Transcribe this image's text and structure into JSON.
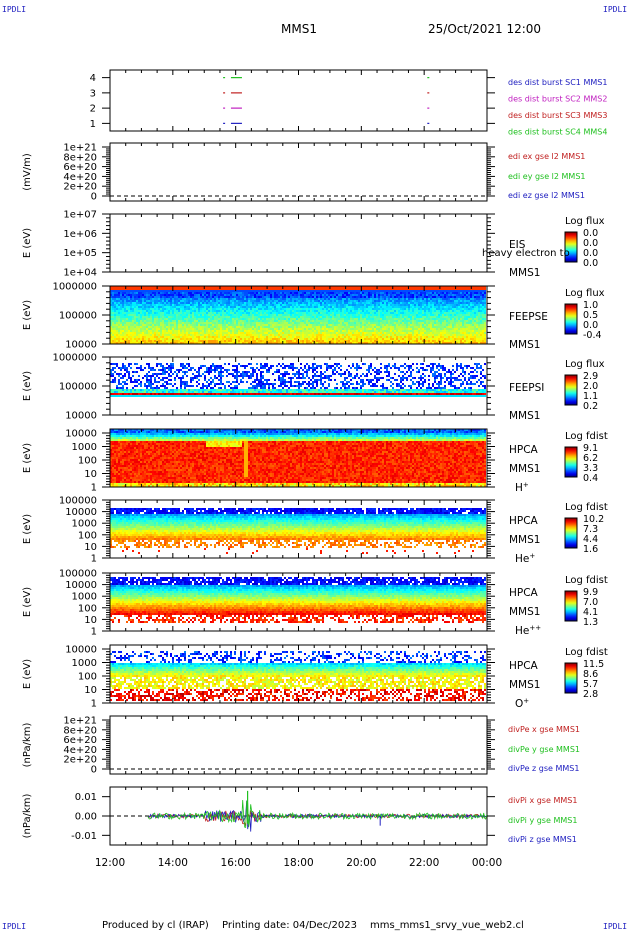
{
  "header": {
    "corner_label": "IPDLI",
    "spacecraft": "MMS1",
    "datetime": "25/Oct/2021 12:00"
  },
  "footer": {
    "produced_by": "Produced by cl (IRAP)",
    "printing_date": "Printing date: 04/Dec/2023",
    "file": "mms_mms1_srvy_vue_web2.cl"
  },
  "x_axis": {
    "ticks": [
      "12:00",
      "14:00",
      "16:00",
      "18:00",
      "20:00",
      "22:00",
      "00:00"
    ],
    "hours": [
      12,
      14,
      16,
      18,
      20,
      22,
      24
    ],
    "range": [
      12,
      24
    ]
  },
  "chart_data": [
    {
      "id": "burst",
      "type": "scatter",
      "ylim": [
        0.5,
        4.5
      ],
      "yticks": [
        "4",
        "3",
        "2",
        "1"
      ],
      "yvals": [
        4,
        3,
        2,
        1
      ],
      "legend": [
        {
          "label": "des dist burst SC1 MMS1",
          "color": "#2020c0"
        },
        {
          "label": "des dist burst SC2 MMS2",
          "color": "#c020c0"
        },
        {
          "label": "des dist burst SC3 MMS3",
          "color": "#c02020"
        },
        {
          "label": "des dist burst SC4 MMS4",
          "color": "#20c020"
        }
      ],
      "series": [
        {
          "level": 4,
          "color": "#20c020",
          "segments": [
            [
              15.6,
              15.65
            ],
            [
              15.85,
              16.2
            ],
            [
              22.1,
              22.12
            ]
          ]
        },
        {
          "level": 3,
          "color": "#c02020",
          "segments": [
            [
              15.6,
              15.65
            ],
            [
              15.85,
              16.2
            ],
            [
              22.1,
              22.12
            ]
          ]
        },
        {
          "level": 2,
          "color": "#c020c0",
          "segments": [
            [
              15.6,
              15.65
            ],
            [
              15.85,
              16.2
            ],
            [
              22.1,
              22.12
            ]
          ]
        },
        {
          "level": 1,
          "color": "#2020c0",
          "segments": [
            [
              15.6,
              15.65
            ],
            [
              15.85,
              16.2
            ],
            [
              22.1,
              22.12
            ]
          ]
        }
      ]
    },
    {
      "id": "edi",
      "type": "line",
      "ylabel": "(mV/m)",
      "yticks": [
        "1e+21",
        "8e+20",
        "6e+20",
        "4e+20",
        "2e+20",
        "0"
      ],
      "ylim": [
        0,
        1e+21
      ],
      "legend": [
        {
          "label": "edi ex gse l2 MMS1",
          "color": "#c02020"
        },
        {
          "label": "edi ey gse l2 MMS1",
          "color": "#20c020"
        },
        {
          "label": "edi ez gse l2 MMS1",
          "color": "#2020c0"
        }
      ]
    },
    {
      "id": "eis",
      "type": "heatmap",
      "ylabel": "E (eV)",
      "yticks": [
        "1e+07",
        "1e+06",
        "1e+05",
        "1e+04"
      ],
      "name": "EIS",
      "sc": "MMS1",
      "overlay": "heavy electron to",
      "cbar_title": "Log flux",
      "cbar_ticks": [
        "0.0",
        "0.0",
        "0.0",
        "0.0"
      ]
    },
    {
      "id": "feepse",
      "type": "heatmap",
      "ylabel": "E (eV)",
      "yticks": [
        "1000000",
        "100000",
        "10000"
      ],
      "name": "FEEPSE",
      "sc": "MMS1",
      "cbar_title": "Log flux",
      "cbar_ticks": [
        "1.0",
        "0.5",
        "0.0",
        "-0.4"
      ]
    },
    {
      "id": "feepsi",
      "type": "heatmap",
      "ylabel": "E (eV)",
      "yticks": [
        "1000000",
        "100000",
        "10000"
      ],
      "name": "FEEPSI",
      "sc": "MMS1",
      "cbar_title": "Log flux",
      "cbar_ticks": [
        "2.9",
        "2.0",
        "1.1",
        "0.2"
      ]
    },
    {
      "id": "hpca_h",
      "type": "heatmap",
      "ylabel": "E (eV)",
      "yticks": [
        "10000",
        "1000",
        "100",
        "10",
        "1"
      ],
      "name": "HPCA",
      "sc": "MMS1",
      "species": "H",
      "charge": "+",
      "cbar_title": "Log fdist",
      "cbar_ticks": [
        "9.1",
        "6.2",
        "3.3",
        "0.4"
      ]
    },
    {
      "id": "hpca_he",
      "type": "heatmap",
      "ylabel": "E (eV)",
      "yticks": [
        "100000",
        "10000",
        "1000",
        "100",
        "10",
        "1"
      ],
      "name": "HPCA",
      "sc": "MMS1",
      "species": "He",
      "charge": "+",
      "cbar_title": "Log fdist",
      "cbar_ticks": [
        "10.2",
        "7.3",
        "4.4",
        "1.6"
      ]
    },
    {
      "id": "hpca_hepp",
      "type": "heatmap",
      "ylabel": "E (eV)",
      "yticks": [
        "100000",
        "10000",
        "1000",
        "100",
        "10",
        "1"
      ],
      "name": "HPCA",
      "sc": "MMS1",
      "species": "He",
      "charge": "++",
      "cbar_title": "Log fdist",
      "cbar_ticks": [
        "9.9",
        "7.0",
        "4.1",
        "1.3"
      ]
    },
    {
      "id": "hpca_o",
      "type": "heatmap",
      "ylabel": "E (eV)",
      "yticks": [
        "10000",
        "1000",
        "100",
        "10",
        "1"
      ],
      "name": "HPCA",
      "sc": "MMS1",
      "species": "O",
      "charge": "+",
      "cbar_title": "Log fdist",
      "cbar_ticks": [
        "11.5",
        "8.6",
        "5.7",
        "2.8"
      ]
    },
    {
      "id": "divpe",
      "type": "line",
      "ylabel": "(nPa/km)",
      "yticks": [
        "1e+21",
        "8e+20",
        "6e+20",
        "4e+20",
        "2e+20",
        "0"
      ],
      "ylim": [
        0,
        1e+21
      ],
      "legend": [
        {
          "label": "divPe x gse MMS1",
          "color": "#c02020"
        },
        {
          "label": "divPe y gse MMS1",
          "color": "#20c020"
        },
        {
          "label": "divPe z gse MMS1",
          "color": "#2020c0"
        }
      ]
    },
    {
      "id": "divpi",
      "type": "line",
      "ylabel": "(nPa/km)",
      "yticks": [
        "0.01",
        "0.00",
        "-0.01"
      ],
      "yvals": [
        0.01,
        0.0,
        -0.01
      ],
      "ylim": [
        -0.015,
        0.015
      ],
      "data_start": 13.2,
      "data_end": 24,
      "legend": [
        {
          "label": "divPi x gse MMS1",
          "color": "#c02020"
        },
        {
          "label": "divPi y gse MMS1",
          "color": "#20c020"
        },
        {
          "label": "divPi z gse MMS1",
          "color": "#2020c0"
        }
      ]
    }
  ]
}
